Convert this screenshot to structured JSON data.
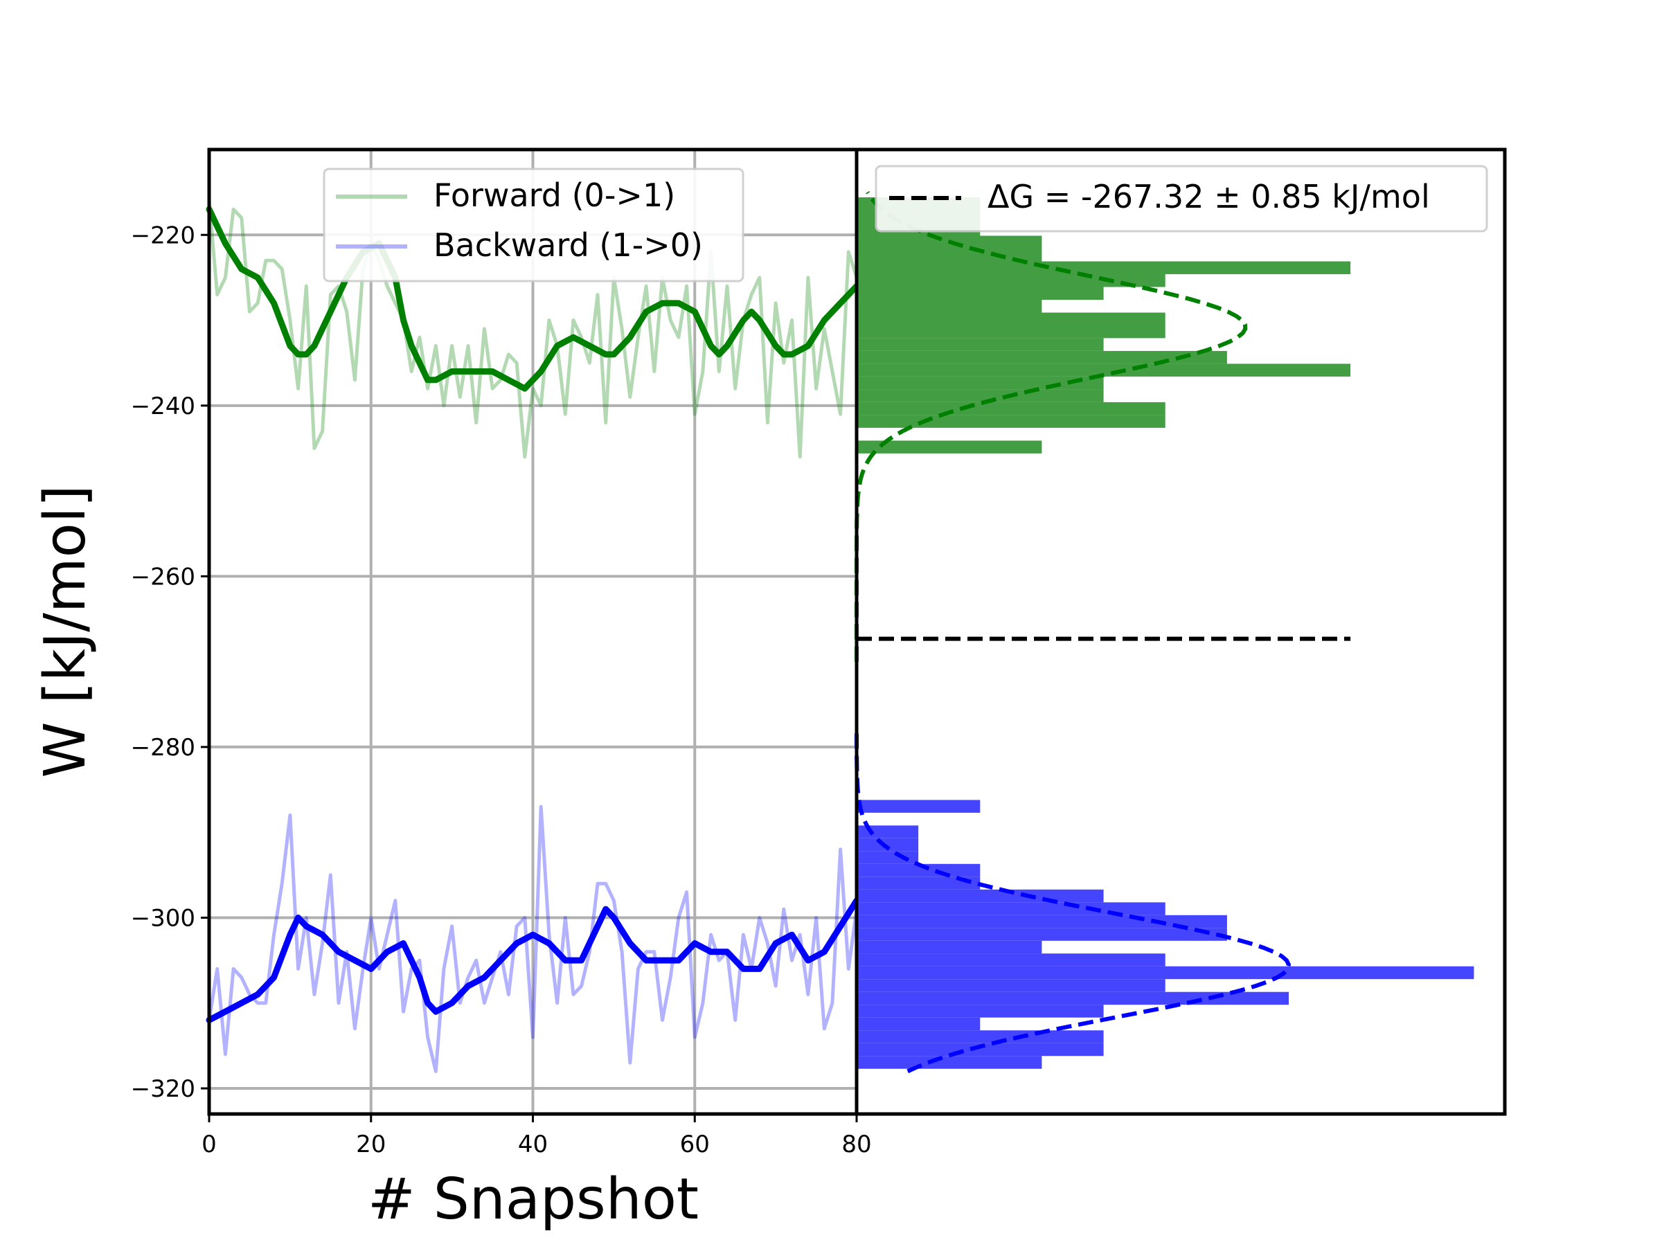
{
  "chart_data": [
    {
      "type": "line",
      "panel": "left",
      "xlabel": "# Snapshot",
      "ylabel": "W [kJ/mol]",
      "xlim": [
        0,
        80
      ],
      "ylim": [
        -323,
        -210
      ],
      "xticks": [
        0,
        20,
        40,
        60,
        80
      ],
      "yticks": [
        -220,
        -240,
        -260,
        -280,
        -300,
        -320
      ],
      "xtick_labels": [
        "0",
        "20",
        "40",
        "60",
        "80"
      ],
      "ytick_labels": [
        "−220",
        "−240",
        "−260",
        "−280",
        "−300",
        "−320"
      ],
      "grid": true,
      "legend": "top-center",
      "colors": {
        "forward": "#008000",
        "backward": "#0000ff"
      },
      "series": [
        {
          "name": "Forward (0->1)",
          "style": "raw",
          "color": "#008000",
          "opacity": 0.3,
          "x": [
            0,
            1,
            2,
            3,
            4,
            5,
            6,
            7,
            8,
            9,
            10,
            11,
            12,
            13,
            14,
            15,
            16,
            17,
            18,
            19,
            20,
            21,
            22,
            23,
            24,
            25,
            26,
            27,
            28,
            29,
            30,
            31,
            32,
            33,
            34,
            35,
            36,
            37,
            38,
            39,
            40,
            41,
            42,
            43,
            44,
            45,
            46,
            47,
            48,
            49,
            50,
            51,
            52,
            53,
            54,
            55,
            56,
            57,
            58,
            59,
            60,
            61,
            62,
            63,
            64,
            65,
            66,
            67,
            68,
            69,
            70,
            71,
            72,
            73,
            74,
            75,
            76,
            77,
            78,
            79,
            80
          ],
          "values": [
            -216,
            -227,
            -225,
            -217,
            -218,
            -229,
            -228,
            -223,
            -223,
            -224,
            -230,
            -238,
            -226,
            -245,
            -243,
            -227,
            -226,
            -229,
            -237,
            -224,
            -221,
            -223,
            -226,
            -228,
            -230,
            -236,
            -232,
            -238,
            -233,
            -240,
            -233,
            -239,
            -233,
            -242,
            -231,
            -238,
            -237,
            -234,
            -235,
            -246,
            -238,
            -240,
            -230,
            -233,
            -241,
            -230,
            -232,
            -235,
            -227,
            -242,
            -225,
            -231,
            -239,
            -232,
            -226,
            -236,
            -225,
            -230,
            -232,
            -226,
            -241,
            -236,
            -222,
            -236,
            -226,
            -238,
            -230,
            -227,
            -225,
            -242,
            -228,
            -235,
            -230,
            -246,
            -225,
            -238,
            -231,
            -236,
            -241,
            -222,
            -225
          ]
        },
        {
          "name": "Backward (1->0)",
          "style": "raw",
          "color": "#0000ff",
          "opacity": 0.3,
          "x": [
            0,
            1,
            2,
            3,
            4,
            5,
            6,
            7,
            8,
            9,
            10,
            11,
            12,
            13,
            14,
            15,
            16,
            17,
            18,
            19,
            20,
            21,
            22,
            23,
            24,
            25,
            26,
            27,
            28,
            29,
            30,
            31,
            32,
            33,
            34,
            35,
            36,
            37,
            38,
            39,
            40,
            41,
            42,
            43,
            44,
            45,
            46,
            47,
            48,
            49,
            50,
            51,
            52,
            53,
            54,
            55,
            56,
            57,
            58,
            59,
            60,
            61,
            62,
            63,
            64,
            65,
            66,
            67,
            68,
            69,
            70,
            71,
            72,
            73,
            74,
            75,
            76,
            77,
            78,
            79,
            80
          ],
          "values": [
            -312,
            -306,
            -316,
            -306,
            -307,
            -309,
            -310,
            -310,
            -302,
            -296,
            -288,
            -306,
            -300,
            -309,
            -303,
            -295,
            -310,
            -304,
            -313,
            -306,
            -300,
            -306,
            -302,
            -298,
            -311,
            -306,
            -305,
            -314,
            -318,
            -306,
            -301,
            -310,
            -307,
            -305,
            -310,
            -307,
            -304,
            -309,
            -301,
            -300,
            -314,
            -287,
            -302,
            -310,
            -300,
            -309,
            -308,
            -304,
            -296,
            -296,
            -298,
            -304,
            -317,
            -306,
            -304,
            -304,
            -312,
            -307,
            -300,
            -297,
            -314,
            -310,
            -302,
            -305,
            -304,
            -312,
            -302,
            -306,
            -300,
            -303,
            -308,
            -299,
            -305,
            -302,
            -309,
            -300,
            -313,
            -310,
            -292,
            -306,
            -299
          ]
        },
        {
          "name": "",
          "style": "smoothed",
          "color": "#008000",
          "x": [
            0,
            2,
            4,
            6,
            8,
            10,
            11,
            12,
            13,
            15,
            17,
            19,
            21,
            22,
            23,
            24,
            25,
            27,
            28,
            30,
            32,
            34,
            35,
            37,
            39,
            41,
            43,
            45,
            47,
            49,
            50,
            52,
            54,
            56,
            58,
            60,
            62,
            63,
            64,
            66,
            67,
            68,
            70,
            71,
            72,
            74,
            76,
            78,
            80
          ],
          "values": [
            -217,
            -221,
            -224,
            -225,
            -228,
            -233,
            -234,
            -234,
            -233,
            -229,
            -225,
            -222,
            -221,
            -223,
            -225,
            -230,
            -233,
            -237,
            -237,
            -236,
            -236,
            -236,
            -236,
            -237,
            -238,
            -236,
            -233,
            -232,
            -233,
            -234,
            -234,
            -232,
            -229,
            -228,
            -228,
            -229,
            -233,
            -234,
            -233,
            -230,
            -229,
            -230,
            -233,
            -234,
            -234,
            -233,
            -230,
            -228,
            -226
          ]
        },
        {
          "name": "",
          "style": "smoothed",
          "color": "#0000ff",
          "x": [
            0,
            2,
            4,
            6,
            8,
            10,
            11,
            12,
            14,
            16,
            18,
            20,
            22,
            24,
            26,
            27,
            28,
            30,
            32,
            34,
            36,
            38,
            40,
            42,
            44,
            46,
            48,
            49,
            50,
            52,
            54,
            56,
            58,
            60,
            62,
            64,
            66,
            68,
            70,
            72,
            74,
            76,
            78,
            80
          ],
          "values": [
            -312,
            -311,
            -310,
            -309,
            -307,
            -302,
            -300,
            -301,
            -302,
            -304,
            -305,
            -306,
            -304,
            -303,
            -307,
            -310,
            -311,
            -310,
            -308,
            -307,
            -305,
            -303,
            -302,
            -303,
            -305,
            -305,
            -301,
            -299,
            -300,
            -303,
            -305,
            -305,
            -305,
            -303,
            -304,
            -304,
            -306,
            -306,
            -303,
            -302,
            -305,
            -304,
            -301,
            -298
          ]
        }
      ]
    },
    {
      "type": "bar",
      "panel": "right",
      "orientation": "horizontal",
      "ylim": [
        -323,
        -210
      ],
      "legend": "top-left",
      "delta_g_label": "ΔG = -267.32 ± 0.85 kJ/mol",
      "delta_g_value": -267.32,
      "delta_g_error": 0.85,
      "colors": {
        "forward": "#439e43",
        "backward": "#4545ff",
        "deltag": "#000000"
      },
      "series": [
        {
          "name": "",
          "color": "#439e43",
          "bin_edges": [
            -245.6,
            -244.1,
            -242.6,
            -241.1,
            -239.6,
            -238.1,
            -236.6,
            -235.1,
            -233.6,
            -232.1,
            -230.6,
            -229.1,
            -227.6,
            -226.1,
            -224.6,
            -223.1,
            -221.6,
            -220.1,
            -218.6,
            -217.1,
            -215.6
          ],
          "counts": [
            3,
            0,
            5,
            5,
            4,
            4,
            8,
            6,
            4,
            5,
            5,
            3,
            4,
            5,
            8,
            3,
            3,
            2,
            2,
            2
          ]
        },
        {
          "name": "",
          "color": "#4545ff",
          "bin_edges": [
            -317.7,
            -316.2,
            -314.7,
            -313.2,
            -311.7,
            -310.2,
            -308.7,
            -307.2,
            -305.7,
            -304.2,
            -302.7,
            -301.2,
            -299.7,
            -298.2,
            -296.7,
            -295.2,
            -293.7,
            -292.2,
            -290.7,
            -289.2,
            -287.7,
            -286.2
          ],
          "counts": [
            3,
            4,
            4,
            2,
            4,
            7,
            5,
            10,
            5,
            3,
            6,
            6,
            5,
            4,
            2,
            2,
            1,
            1,
            1,
            0,
            2
          ]
        },
        {
          "name": "",
          "style": "gaussian-dashed",
          "color": "#008000",
          "mean": -230.8,
          "sigma": 5.9,
          "peak": 6.3
        },
        {
          "name": "",
          "style": "gaussian-dashed",
          "color": "#0000ff",
          "mean": -305.6,
          "sigma": 6.0,
          "peak": 7.0
        }
      ],
      "xlim": [
        0,
        10.5
      ]
    }
  ]
}
